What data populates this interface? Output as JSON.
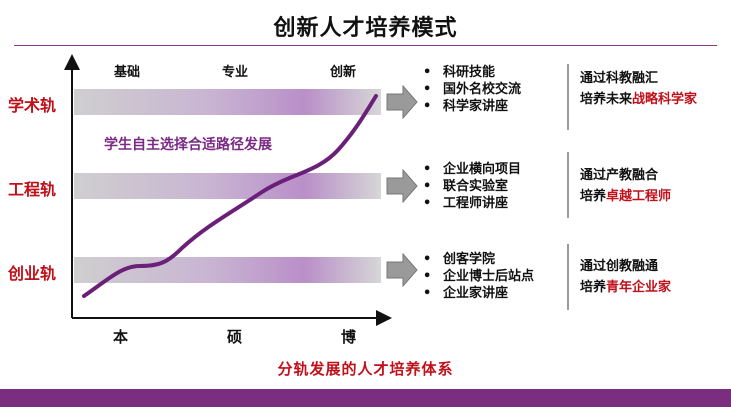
{
  "title": "创新人才培养模式",
  "stages": [
    "基础",
    "专业",
    "创新"
  ],
  "tracks": [
    {
      "label": "学术轨",
      "bullets": [
        "科研技能",
        "国外名校交流",
        "科学家讲座"
      ],
      "result_line1": "通过科教融汇",
      "result_line2_prefix": "培养未来",
      "result_line2_highlight": "战略科学家"
    },
    {
      "label": "工程轨",
      "bullets": [
        "企业横向项目",
        "联合实验室",
        "工程师讲座"
      ],
      "result_line1": "通过产教融合",
      "result_line2_prefix": "培养",
      "result_line2_highlight": "卓越工程师"
    },
    {
      "label": "创业轨",
      "bullets": [
        "创客学院",
        "企业博士后站点",
        "企业家讲座"
      ],
      "result_line1": "通过创教融通",
      "result_line2_prefix": "培养",
      "result_line2_highlight": "青年企业家"
    }
  ],
  "curve_note": "学生自主选择合适路径发展",
  "degrees": [
    "本",
    "硕",
    "博"
  ],
  "caption": "分轨发展的人才培养体系",
  "colors": {
    "accent_red": "#c0101a",
    "accent_purple": "#7b2d80",
    "curve": "#6a1f78"
  }
}
